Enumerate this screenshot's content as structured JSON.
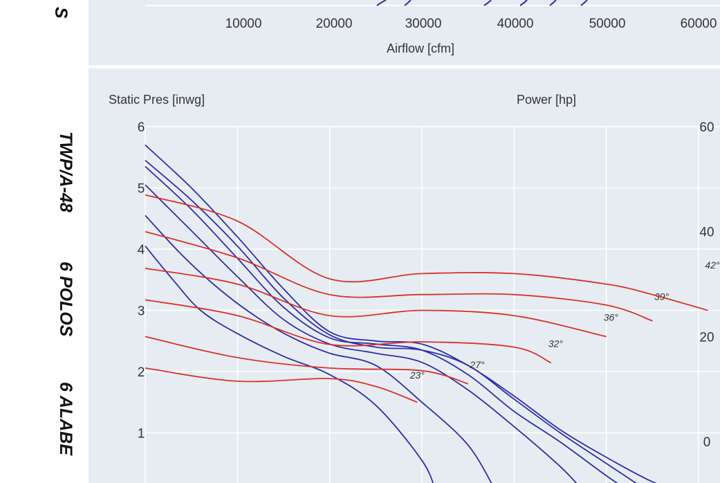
{
  "side_label": {
    "model": "TWP/A-48",
    "poles": "6 POLOS",
    "blades": "6 ALABE"
  },
  "top_chart": {
    "x_ticks": [
      "10000",
      "20000",
      "30000",
      "40000",
      "50000",
      "60000"
    ],
    "x_label": "Airflow [cfm]"
  },
  "colors": {
    "panel": "#e6ecf1",
    "grid": "#ffffff",
    "pressure_curves": "#2b2fa8",
    "power_curves": "#d9302b"
  },
  "chart_data": {
    "type": "line",
    "xlim": [
      0,
      60000
    ],
    "x_ticks": [
      10000,
      20000,
      30000,
      40000,
      50000,
      60000
    ],
    "y_left": {
      "label": "Static Pres [inwg]",
      "ticks": [
        "1",
        "2",
        "3",
        "4",
        "5",
        "6"
      ],
      "range": [
        0,
        6
      ]
    },
    "y_right": {
      "label": "Power [hp]",
      "ticks": [
        "0",
        "20",
        "40",
        "60"
      ],
      "range": [
        -10,
        60
      ]
    },
    "grid": true,
    "pressure_series": [
      {
        "name": "23°",
        "label_x": 32500,
        "label_y": 0.05,
        "points": [
          [
            0,
            4.05
          ],
          [
            3000,
            3.5
          ],
          [
            6000,
            3.0
          ],
          [
            10000,
            2.62
          ],
          [
            15000,
            2.25
          ],
          [
            20000,
            1.95
          ],
          [
            25000,
            1.45
          ],
          [
            30000,
            0.55
          ],
          [
            31500,
            0.05
          ]
        ]
      },
      {
        "name": "27°",
        "label_x": 39000,
        "label_y": 0.05,
        "points": [
          [
            0,
            4.55
          ],
          [
            4000,
            3.9
          ],
          [
            8000,
            3.35
          ],
          [
            12000,
            2.9
          ],
          [
            16000,
            2.55
          ],
          [
            20000,
            2.3
          ],
          [
            25000,
            2.1
          ],
          [
            30000,
            1.5
          ],
          [
            35000,
            0.8
          ],
          [
            38000,
            0.05
          ]
        ]
      },
      {
        "name": "32°",
        "label_x": 48500,
        "label_y": 0.05,
        "points": [
          [
            0,
            5.05
          ],
          [
            5000,
            4.3
          ],
          [
            10000,
            3.55
          ],
          [
            15000,
            2.85
          ],
          [
            20000,
            2.45
          ],
          [
            25000,
            2.3
          ],
          [
            30000,
            2.15
          ],
          [
            35000,
            1.7
          ],
          [
            40000,
            1.1
          ],
          [
            45000,
            0.45
          ],
          [
            47500,
            0.05
          ]
        ]
      },
      {
        "name": "36°",
        "label_x": 54500,
        "label_y": 0.05,
        "points": [
          [
            0,
            5.35
          ],
          [
            5000,
            4.65
          ],
          [
            10000,
            3.85
          ],
          [
            15000,
            3.05
          ],
          [
            20000,
            2.55
          ],
          [
            25000,
            2.45
          ],
          [
            30000,
            2.35
          ],
          [
            35000,
            1.95
          ],
          [
            40000,
            1.35
          ],
          [
            45000,
            0.85
          ],
          [
            50000,
            0.3
          ],
          [
            52500,
            0.05
          ]
        ]
      },
      {
        "name": "39°",
        "label_x": 60500,
        "label_y": 0.05,
        "points": [
          [
            0,
            5.45
          ],
          [
            5000,
            4.8
          ],
          [
            10000,
            4.05
          ],
          [
            15000,
            3.2
          ],
          [
            20000,
            2.6
          ],
          [
            25000,
            2.4
          ],
          [
            30000,
            2.35
          ],
          [
            35000,
            2.1
          ],
          [
            40000,
            1.55
          ],
          [
            45000,
            1.0
          ],
          [
            50000,
            0.5
          ],
          [
            54500,
            0.05
          ]
        ]
      },
      {
        "name": "42°",
        "label_x": 66500,
        "label_y": 0.05,
        "points": [
          [
            0,
            5.7
          ],
          [
            5000,
            5.0
          ],
          [
            10000,
            4.2
          ],
          [
            15000,
            3.35
          ],
          [
            20000,
            2.65
          ],
          [
            25000,
            2.5
          ],
          [
            30000,
            2.45
          ],
          [
            35000,
            2.1
          ],
          [
            40000,
            1.6
          ],
          [
            45000,
            1.05
          ],
          [
            50000,
            0.6
          ],
          [
            55000,
            0.2
          ],
          [
            58000,
            0.05
          ]
        ]
      }
    ],
    "power_series": [
      {
        "name": "23°",
        "label_x": 29500,
        "label_y": 12,
        "points": [
          [
            0,
            14
          ],
          [
            10000,
            11.5
          ],
          [
            20000,
            12
          ],
          [
            25000,
            10.5
          ],
          [
            29500,
            7.5
          ]
        ]
      },
      {
        "name": "27°",
        "label_x": 36000,
        "label_y": 14,
        "points": [
          [
            0,
            20
          ],
          [
            10000,
            16
          ],
          [
            20000,
            14
          ],
          [
            30000,
            13.5
          ],
          [
            35000,
            11
          ]
        ]
      },
      {
        "name": "32°",
        "label_x": 44500,
        "label_y": 18,
        "points": [
          [
            0,
            27
          ],
          [
            10000,
            24
          ],
          [
            20000,
            18.5
          ],
          [
            30000,
            19
          ],
          [
            40000,
            18
          ],
          [
            44000,
            15
          ]
        ]
      },
      {
        "name": "36°",
        "label_x": 50500,
        "label_y": 23,
        "points": [
          [
            0,
            33
          ],
          [
            10000,
            30
          ],
          [
            20000,
            24
          ],
          [
            30000,
            25
          ],
          [
            40000,
            24
          ],
          [
            50000,
            20
          ]
        ]
      },
      {
        "name": "39°",
        "label_x": 56000,
        "label_y": 27,
        "points": [
          [
            0,
            40
          ],
          [
            10000,
            35
          ],
          [
            20000,
            28
          ],
          [
            30000,
            28
          ],
          [
            40000,
            28
          ],
          [
            50000,
            26
          ],
          [
            55000,
            23
          ]
        ]
      },
      {
        "name": "42°",
        "label_x": 61500,
        "label_y": 33,
        "points": [
          [
            0,
            47
          ],
          [
            10000,
            42
          ],
          [
            20000,
            31
          ],
          [
            30000,
            32
          ],
          [
            40000,
            32
          ],
          [
            50000,
            30
          ],
          [
            55000,
            28
          ],
          [
            61000,
            25
          ]
        ]
      }
    ]
  }
}
